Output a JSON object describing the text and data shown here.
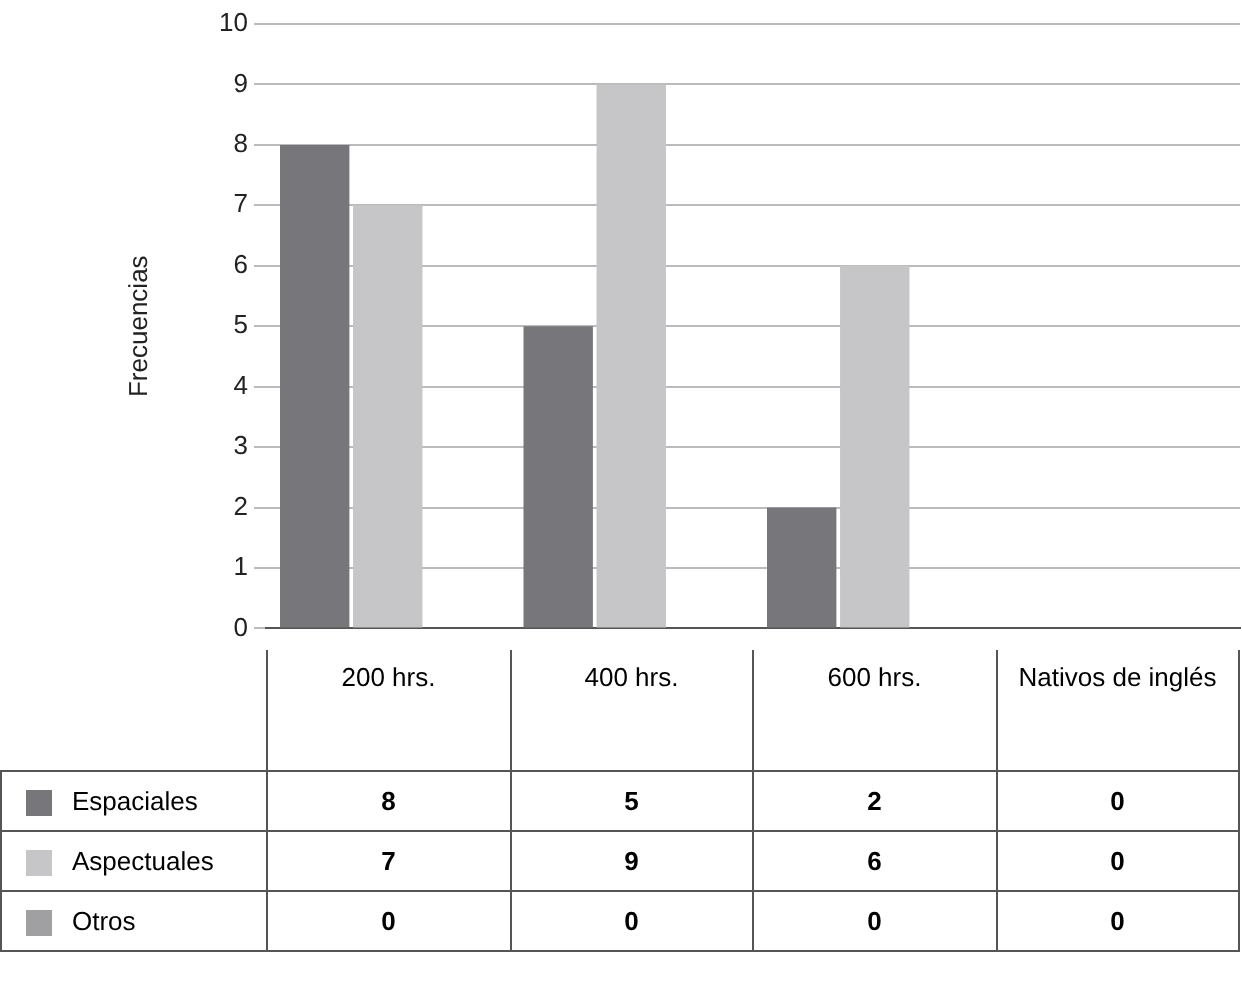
{
  "chart_data": {
    "type": "bar",
    "ylabel": "Frecuencias",
    "categories": [
      "200 hrs.",
      "400 hrs.",
      "600 hrs.",
      "Nativos de inglés"
    ],
    "series": [
      {
        "name": "Espaciales",
        "color": "#77777b",
        "values": [
          8,
          5,
          2,
          0
        ]
      },
      {
        "name": "Aspectuales",
        "color": "#c6c6c8",
        "values": [
          7,
          9,
          6,
          0
        ]
      },
      {
        "name": "Otros",
        "color": "#a0a0a3",
        "values": [
          0,
          0,
          0,
          0
        ]
      }
    ],
    "ylim": [
      0,
      10
    ],
    "yticks": [
      0,
      1,
      2,
      3,
      4,
      5,
      6,
      7,
      8,
      9,
      10
    ],
    "grid": "y",
    "legend": "bottom",
    "data_labels": true
  }
}
